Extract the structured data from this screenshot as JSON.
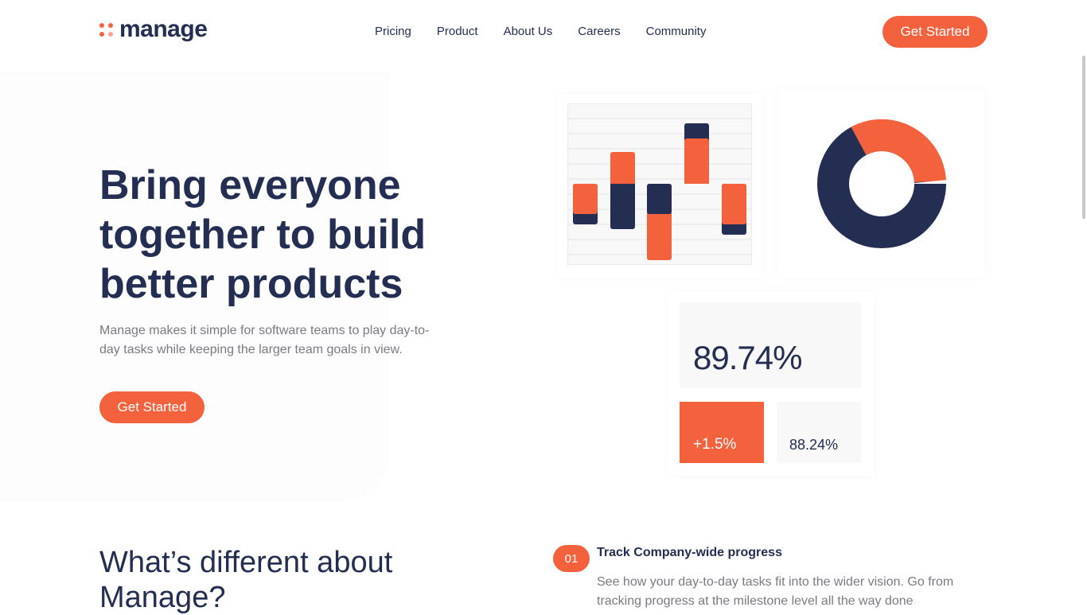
{
  "header": {
    "logo": "manage",
    "nav": [
      "Pricing",
      "Product",
      "About Us",
      "Careers",
      "Community"
    ],
    "cta": "Get Started"
  },
  "hero": {
    "title": "Bring everyone together to build better products",
    "description": "Manage makes it simple for software teams to play day-to-day tasks while keeping the larger team goals in view.",
    "cta": "Get Started"
  },
  "illustration": {
    "colors": {
      "accent": "#f3613d",
      "navy": "#242d52"
    },
    "main_stat": "89.74%",
    "change_stat": "+1.5%",
    "secondary_stat": "88.24%"
  },
  "features": {
    "heading": "What’s different about Manage?",
    "items": [
      {
        "number": "01",
        "title": "Track Company-wide progress",
        "description": "See how your day-to-day tasks fit into the wider vision. Go from tracking progress at the milestone level all the way done"
      }
    ]
  }
}
